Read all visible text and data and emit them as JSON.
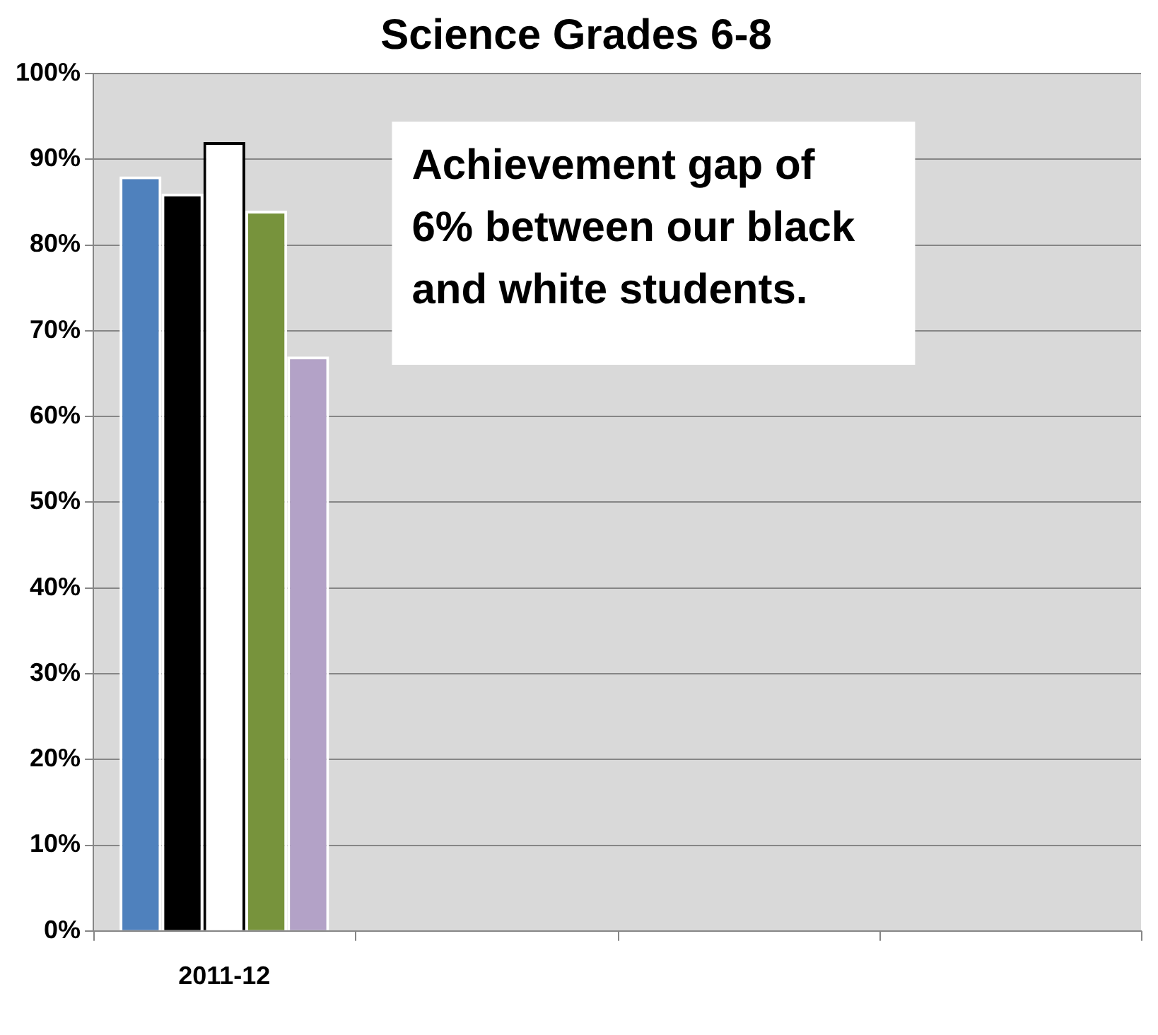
{
  "chart_data": {
    "type": "bar",
    "title": "Science Grades 6-8",
    "categories": [
      "2011-12",
      null,
      null,
      null
    ],
    "series": [
      {
        "color": "#4f81bd",
        "values": [
          88,
          null,
          null,
          null
        ]
      },
      {
        "color": "#000000",
        "values": [
          86,
          null,
          null,
          null
        ]
      },
      {
        "color": "#ffffff",
        "values": [
          92,
          null,
          null,
          null
        ]
      },
      {
        "color": "#77933c",
        "values": [
          84,
          null,
          null,
          null
        ]
      },
      {
        "color": "#b3a2c7",
        "values": [
          67,
          null,
          null,
          null
        ]
      }
    ],
    "ylim": [
      0,
      100
    ],
    "yticks": [
      {
        "value": 0,
        "label": "0%"
      },
      {
        "value": 10,
        "label": "10%"
      },
      {
        "value": 20,
        "label": "20%"
      },
      {
        "value": 30,
        "label": "30%"
      },
      {
        "value": 40,
        "label": "40%"
      },
      {
        "value": 50,
        "label": "50%"
      },
      {
        "value": 60,
        "label": "60%"
      },
      {
        "value": 70,
        "label": "70%"
      },
      {
        "value": 80,
        "label": "80%"
      },
      {
        "value": 90,
        "label": "90%"
      },
      {
        "value": 100,
        "label": "100%"
      }
    ],
    "grid": "y",
    "legend": false,
    "annotations": [
      "Achievement gap of 6% between our black and white students."
    ]
  }
}
